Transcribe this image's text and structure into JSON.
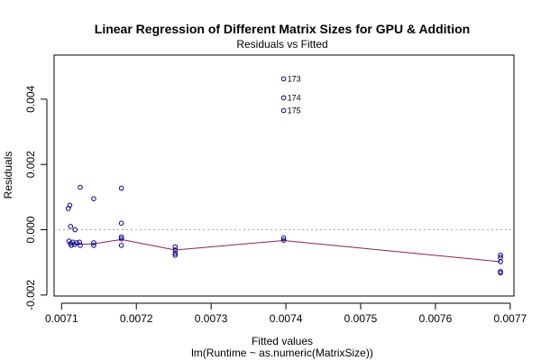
{
  "chart_data": {
    "type": "scatter",
    "title": "Linear Regression of Different Matrix Sizes for GPU & Addition",
    "subtitle": "Residuals vs Fitted",
    "xlabel": "Fitted values",
    "xlabel2": "lm(Runtime ~ as.numeric(MatrixSize))",
    "ylabel": "Residuals",
    "xlim": [
      0.00709,
      0.007705
    ],
    "ylim": [
      -0.00203,
      0.00535
    ],
    "xticks": [
      0.0071,
      0.0072,
      0.0073,
      0.0074,
      0.0075,
      0.0076,
      0.0077
    ],
    "xtick_labels": [
      "0.0071",
      "0.0072",
      "0.0073",
      "0.0074",
      "0.0075",
      "0.0076",
      "0.0077"
    ],
    "yticks": [
      -0.002,
      0.0,
      0.002,
      0.004
    ],
    "ytick_labels": [
      "-0.002",
      "0.000",
      "0.002",
      "0.004"
    ],
    "zero_line": 0,
    "grid": false,
    "colors": {
      "points": "#00008b",
      "smooth": "#8b2252",
      "zero_line": "#aaaaaa"
    },
    "points": [
      {
        "x": 0.007109,
        "y": 0.00065
      },
      {
        "x": 0.007111,
        "y": 0.00075
      },
      {
        "x": 0.007112,
        "y": 0.0001
      },
      {
        "x": 0.00711,
        "y": -0.00035
      },
      {
        "x": 0.007112,
        "y": -0.00042
      },
      {
        "x": 0.007113,
        "y": -0.00048
      },
      {
        "x": 0.007115,
        "y": -0.00038
      },
      {
        "x": 0.007117,
        "y": -0.00045
      },
      {
        "x": 0.007118,
        "y": 0.0
      },
      {
        "x": 0.00712,
        "y": -0.0004
      },
      {
        "x": 0.007125,
        "y": 0.0013
      },
      {
        "x": 0.007124,
        "y": -0.00038
      },
      {
        "x": 0.007125,
        "y": -0.00048
      },
      {
        "x": 0.007143,
        "y": 0.00095
      },
      {
        "x": 0.007143,
        "y": -0.0004
      },
      {
        "x": 0.007143,
        "y": -0.00048
      },
      {
        "x": 0.00718,
        "y": 0.00127
      },
      {
        "x": 0.00718,
        "y": 0.0002
      },
      {
        "x": 0.00718,
        "y": -0.00022
      },
      {
        "x": 0.00718,
        "y": -0.00028
      },
      {
        "x": 0.00718,
        "y": -0.00048
      },
      {
        "x": 0.007252,
        "y": -0.00052
      },
      {
        "x": 0.007252,
        "y": -0.00062
      },
      {
        "x": 0.007252,
        "y": -0.00072
      },
      {
        "x": 0.007252,
        "y": -0.00078
      },
      {
        "x": 0.007397,
        "y": 0.00462,
        "label": "173"
      },
      {
        "x": 0.007397,
        "y": 0.00404,
        "label": "174"
      },
      {
        "x": 0.007397,
        "y": 0.00365,
        "label": "175"
      },
      {
        "x": 0.007397,
        "y": -0.00025
      },
      {
        "x": 0.007397,
        "y": -0.00032
      },
      {
        "x": 0.007687,
        "y": -0.00078
      },
      {
        "x": 0.007687,
        "y": -0.00085
      },
      {
        "x": 0.007687,
        "y": -0.00098
      },
      {
        "x": 0.007687,
        "y": -0.00128
      },
      {
        "x": 0.007687,
        "y": -0.00132
      }
    ],
    "smooth_line": [
      {
        "x": 0.00711,
        "y": -0.00042
      },
      {
        "x": 0.00712,
        "y": -0.00045
      },
      {
        "x": 0.007143,
        "y": -0.00043
      },
      {
        "x": 0.00718,
        "y": -0.0003
      },
      {
        "x": 0.007252,
        "y": -0.00062
      },
      {
        "x": 0.007397,
        "y": -0.00033
      },
      {
        "x": 0.007687,
        "y": -0.00098
      }
    ]
  }
}
